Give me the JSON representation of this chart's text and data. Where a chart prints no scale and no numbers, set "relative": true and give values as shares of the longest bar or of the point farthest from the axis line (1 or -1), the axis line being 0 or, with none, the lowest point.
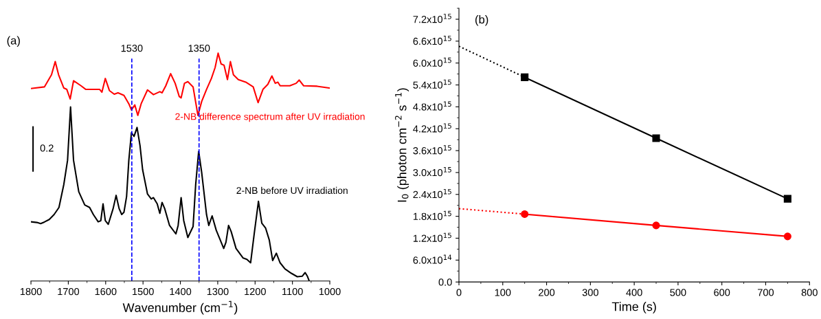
{
  "chart_data": [
    {
      "type": "line",
      "relative": true,
      "tick_labels": "x",
      "xlabel": "Wavenumber (cm$^{−1}$)",
      "xlim": [
        1800,
        1000
      ],
      "xticks": [
        1800,
        1700,
        1600,
        1500,
        1400,
        1300,
        1200,
        1100,
        1000
      ],
      "grid": false,
      "legend": false,
      "marker": "none",
      "line_style": "solid",
      "annotations": [
        "(a)",
        "0.2"
      ],
      "ref_lines": [
        {
          "axis": "x",
          "value": 1530,
          "label": "1530",
          "color": "#0000ff",
          "line_style": "dashed"
        },
        {
          "axis": "x",
          "value": 1350,
          "label": "1350",
          "color": "#0000ff",
          "line_style": "dashed"
        }
      ],
      "series": [
        {
          "name": "2-NB difference spectrum after UV irradiation",
          "color": "#ff0000",
          "x": [
            1800,
            1764,
            1745,
            1735,
            1726,
            1712,
            1704,
            1695,
            1686,
            1666,
            1653,
            1633,
            1616,
            1610,
            1601,
            1590,
            1577,
            1567,
            1551,
            1538,
            1531,
            1522,
            1514,
            1505,
            1488,
            1472,
            1455,
            1449,
            1439,
            1426,
            1414,
            1403,
            1398,
            1389,
            1380,
            1366,
            1353,
            1343,
            1330,
            1317,
            1307,
            1299,
            1291,
            1283,
            1274,
            1266,
            1258,
            1245,
            1225,
            1205,
            1192,
            1179,
            1166,
            1155,
            1146,
            1139,
            1133,
            1107,
            1090,
            1082,
            1070,
            1034,
            1000
          ],
          "values": [
            0.845,
            0.852,
            0.905,
            0.963,
            0.905,
            0.847,
            0.841,
            0.799,
            0.879,
            0.857,
            0.841,
            0.841,
            0.841,
            0.829,
            0.889,
            0.836,
            0.82,
            0.826,
            0.815,
            0.778,
            0.751,
            0.773,
            0.727,
            0.778,
            0.839,
            0.818,
            0.831,
            0.826,
            0.857,
            0.91,
            0.868,
            0.81,
            0.804,
            0.868,
            0.875,
            0.852,
            0.727,
            0.788,
            0.841,
            0.889,
            0.937,
            1.0,
            0.953,
            0.947,
            0.884,
            0.963,
            0.905,
            0.884,
            0.873,
            0.852,
            0.783,
            0.841,
            0.863,
            0.9,
            0.868,
            0.873,
            0.857,
            0.857,
            0.868,
            0.882,
            0.857,
            0.855,
            0.847
          ]
        },
        {
          "name": "2-NB before UV irradiation",
          "color": "#000000",
          "x": [
            1800,
            1784,
            1774,
            1764,
            1751,
            1738,
            1725,
            1712,
            1702,
            1694,
            1686,
            1672,
            1656,
            1643,
            1633,
            1620,
            1613,
            1607,
            1601,
            1593,
            1580,
            1572,
            1564,
            1557,
            1551,
            1544,
            1538,
            1531,
            1524,
            1516,
            1508,
            1501,
            1488,
            1478,
            1472,
            1462,
            1455,
            1449,
            1442,
            1429,
            1412,
            1406,
            1398,
            1391,
            1380,
            1366,
            1359,
            1351,
            1343,
            1330,
            1324,
            1315,
            1304,
            1284,
            1278,
            1271,
            1264,
            1251,
            1232,
            1222,
            1212,
            1202,
            1191,
            1182,
            1172,
            1162,
            1153,
            1143,
            1133,
            1120,
            1103,
            1087,
            1074,
            1066,
            1060,
            1055
          ],
          "values": [
            0.26,
            0.257,
            0.252,
            0.259,
            0.27,
            0.292,
            0.323,
            0.424,
            0.53,
            0.764,
            0.53,
            0.392,
            0.334,
            0.323,
            0.292,
            0.26,
            0.265,
            0.339,
            0.265,
            0.249,
            0.318,
            0.376,
            0.318,
            0.292,
            0.302,
            0.371,
            0.53,
            0.651,
            0.635,
            0.674,
            0.594,
            0.488,
            0.382,
            0.36,
            0.366,
            0.339,
            0.297,
            0.345,
            0.318,
            0.244,
            0.207,
            0.244,
            0.366,
            0.265,
            0.191,
            0.239,
            0.424,
            0.569,
            0.477,
            0.292,
            0.244,
            0.286,
            0.223,
            0.143,
            0.17,
            0.244,
            0.217,
            0.143,
            0.101,
            0.095,
            0.08,
            0.212,
            0.35,
            0.254,
            0.233,
            0.18,
            0.09,
            0.122,
            0.08,
            0.053,
            0.034,
            0.019,
            0.021,
            0.037,
            0.021,
            0.0
          ]
        }
      ]
    },
    {
      "type": "line",
      "xlabel": "Time (s)",
      "ylabel": "I$_{0}$ (photon cm$^{−2}$ s$^{−1}$)",
      "xlim": [
        0,
        800
      ],
      "xticks": [
        0,
        100,
        200,
        300,
        400,
        500,
        600,
        700,
        800
      ],
      "ylim": [
        0,
        7500000000000000.0
      ],
      "yticks": [
        {
          "value": 0,
          "label": "0.0"
        },
        {
          "value": 600000000000000.0,
          "label": "6.0x10$^{14}$"
        },
        {
          "value": 1200000000000000.0,
          "label": "1.2x10$^{15}$"
        },
        {
          "value": 1800000000000000.0,
          "label": "1.8x10$^{15}$"
        },
        {
          "value": 2400000000000000.0,
          "label": "2.4x10$^{15}$"
        },
        {
          "value": 3000000000000000.0,
          "label": "3.0x10$^{15}$"
        },
        {
          "value": 3600000000000000.0,
          "label": "3.6x10$^{15}$"
        },
        {
          "value": 4200000000000000.0,
          "label": "4.2x10$^{15}$"
        },
        {
          "value": 4800000000000000.0,
          "label": "4.8x10$^{15}$"
        },
        {
          "value": 5400000000000000.0,
          "label": "5.4x10$^{15}$"
        },
        {
          "value": 6000000000000000.0,
          "label": "6.0x10$^{15}$"
        },
        {
          "value": 6600000000000000.0,
          "label": "6.6x10$^{15}$"
        },
        {
          "value": 7200000000000000.0,
          "label": "7.2x10$^{15}$"
        }
      ],
      "grid": false,
      "legend": false,
      "annotations": [
        "(b)"
      ],
      "series": [
        {
          "color": "#000000",
          "x": [
            0,
            150
          ],
          "values": [
            6460000000000000.0,
            5610000000000000.0
          ],
          "line_style": "dotted"
        },
        {
          "color": "#ff0000",
          "x": [
            0,
            150
          ],
          "values": [
            2010000000000000.0,
            1860000000000000.0
          ],
          "line_style": "dotted"
        },
        {
          "color": "#000000",
          "x": [
            150,
            450,
            750
          ],
          "values": [
            5610000000000000.0,
            3940000000000000.0,
            2280000000000000.0
          ],
          "marker": "square",
          "line_style": "solid"
        },
        {
          "color": "#ff0000",
          "x": [
            150,
            450,
            750
          ],
          "values": [
            1860000000000000.0,
            1550000000000000.0,
            1250000000000000.0
          ],
          "marker": "circle",
          "line_style": "solid"
        }
      ]
    }
  ]
}
